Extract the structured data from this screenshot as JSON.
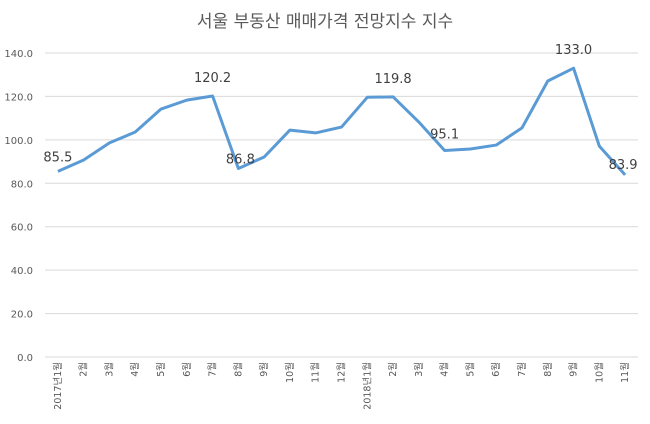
{
  "chart_data": {
    "type": "line",
    "title": "서울 부동산 매매가격 전망지수 지수",
    "categories": [
      "2017년1월",
      "2월",
      "3월",
      "4월",
      "5월",
      "6월",
      "7월",
      "8월",
      "9월",
      "10월",
      "11월",
      "12월",
      "2018년1월",
      "2월",
      "3월",
      "4월",
      "5월",
      "6월",
      "7월",
      "8월",
      "9월",
      "10월",
      "11월"
    ],
    "values": [
      85.5,
      90.7,
      98.6,
      103.6,
      114.2,
      118.3,
      120.2,
      86.8,
      92.1,
      104.5,
      103.2,
      105.9,
      119.6,
      119.8,
      108.2,
      95.1,
      95.8,
      97.6,
      105.5,
      127.1,
      133.0,
      97.1,
      83.9
    ],
    "data_labels": {
      "0": "85.5",
      "6": "120.2",
      "7": "86.8",
      "13": "119.8",
      "15": "95.1",
      "20": "133.0",
      "22": "83.9"
    },
    "yticks": [
      "0.0",
      "20.0",
      "40.0",
      "60.0",
      "80.0",
      "100.0",
      "120.0",
      "140.0"
    ],
    "ylim": [
      0,
      140
    ],
    "grid": true,
    "legend": "none",
    "xlabel": "",
    "ylabel": "",
    "line_color": "#5B9BD5",
    "grid_color": "#D9D9D9"
  }
}
